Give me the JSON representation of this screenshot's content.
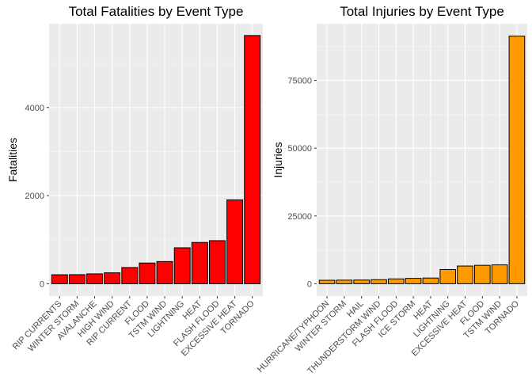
{
  "chart_data": [
    {
      "type": "bar",
      "title": "Total Fatalities by Event Type",
      "xlabel": "",
      "ylabel": "Fatalities",
      "ylim": [
        -280,
        5900
      ],
      "yticks": [
        0,
        2000,
        4000
      ],
      "grid": true,
      "color": "#FF0000",
      "categories": [
        "RIP CURRENTS",
        "WINTER STORM",
        "AVALANCHE",
        "HIGH WIND",
        "RIP CURRENT",
        "FLOOD",
        "TSTM WIND",
        "LIGHTNING",
        "HEAT",
        "FLASH FLOOD",
        "EXCESSIVE HEAT",
        "TORNADO"
      ],
      "values": [
        204,
        206,
        224,
        248,
        368,
        470,
        504,
        816,
        937,
        978,
        1903,
        5633
      ]
    },
    {
      "type": "bar",
      "title": "Total Injuries by Event Type",
      "xlabel": "",
      "ylabel": "Injuries",
      "ylim": [
        -4560,
        95900
      ],
      "yticks": [
        0,
        25000,
        50000,
        75000
      ],
      "grid": true,
      "color": "#FF9900",
      "categories": [
        "HURRICANE/TYPHOON",
        "WINTER STORM",
        "HAIL",
        "THUNDERSTORM WIND",
        "FLASH FLOOD",
        "ICE STORM",
        "HEAT",
        "LIGHTNING",
        "EXCESSIVE HEAT",
        "FLOOD",
        "TSTM WIND",
        "TORNADO"
      ],
      "values": [
        1275,
        1321,
        1361,
        1488,
        1777,
        1975,
        2100,
        5230,
        6525,
        6789,
        6957,
        91346
      ]
    }
  ]
}
